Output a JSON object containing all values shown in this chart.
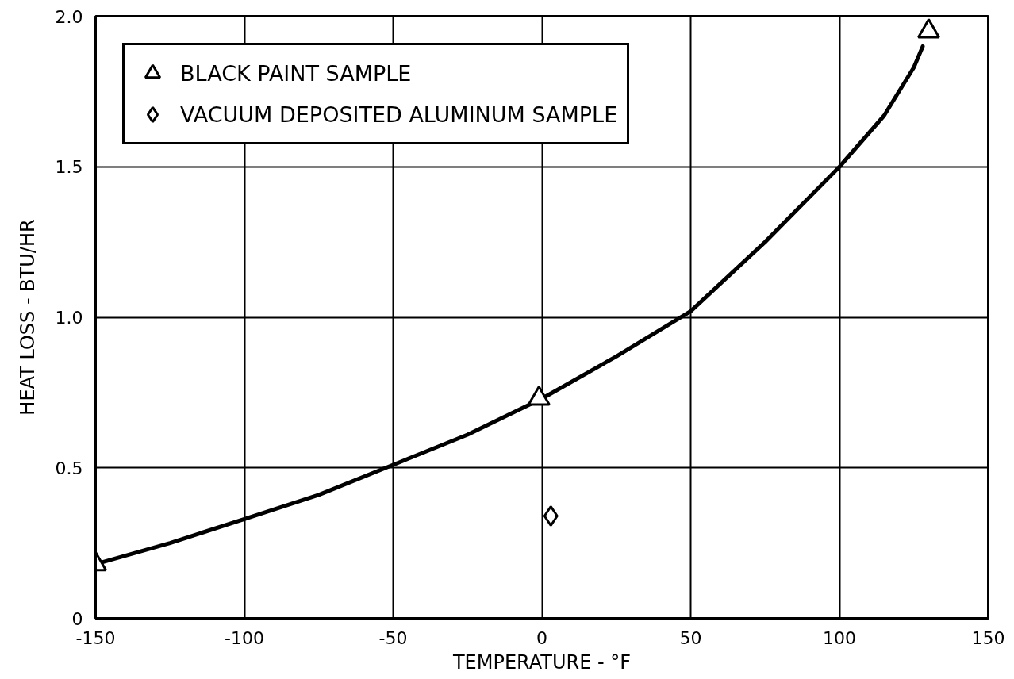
{
  "chart_data": {
    "type": "scatter",
    "xlabel": "TEMPERATURE - °F",
    "ylabel": "HEAT LOSS - BTU/HR",
    "xlim": [
      -150,
      150
    ],
    "ylim": [
      0,
      2
    ],
    "xticks": [
      -150,
      -100,
      -50,
      0,
      50,
      100,
      150
    ],
    "yticks": [
      0,
      0.5,
      {
        "value": 1,
        "label": "1.0"
      },
      1.5,
      {
        "value": 2,
        "label": "2.0"
      }
    ],
    "grid": true,
    "legend": "top left",
    "series": [
      {
        "type": "line",
        "color": "#000000",
        "marker": "none",
        "line_style": "solid",
        "x": [
          -150,
          -125,
          -100,
          -75,
          -50,
          -25,
          0,
          25,
          50,
          75,
          100,
          115,
          125,
          128
        ],
        "values": [
          0.18,
          0.25,
          0.33,
          0.41,
          0.51,
          0.61,
          0.73,
          0.87,
          1.02,
          1.25,
          1.5,
          1.67,
          1.83,
          1.9
        ]
      },
      {
        "name": "BLACK PAINT SAMPLE",
        "color": "#000000",
        "marker": "triangle",
        "x": [
          -150,
          -1,
          130
        ],
        "values": [
          0.18,
          0.73,
          1.95
        ]
      },
      {
        "name": "VACUUM DEPOSITED ALUMINUM SAMPLE",
        "color": "#000000",
        "marker": "diamond",
        "x": [
          3
        ],
        "values": [
          0.34
        ]
      }
    ]
  }
}
